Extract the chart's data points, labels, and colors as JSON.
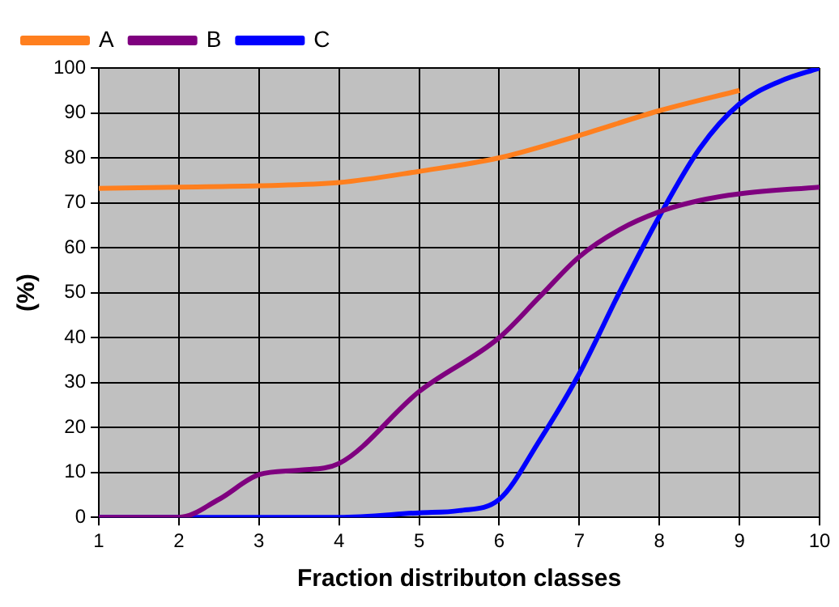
{
  "chart_data": {
    "type": "line",
    "xlabel": "Fraction distributon classes",
    "ylabel": "(%)",
    "xlim": [
      1,
      10
    ],
    "xticks": [
      1,
      2,
      3,
      4,
      5,
      6,
      7,
      8,
      9,
      10
    ],
    "ylim": [
      0,
      100
    ],
    "yticks": [
      0,
      10,
      20,
      30,
      40,
      50,
      60,
      70,
      80,
      90,
      100
    ],
    "grid": true,
    "legend": "top left",
    "marker": "none",
    "line_style": "solid",
    "series": [
      {
        "name": "A",
        "color": "#ff7f1e",
        "x": [
          1,
          2,
          3,
          4,
          5,
          6,
          7,
          8,
          9
        ],
        "values": [
          73.2,
          73.5,
          73.8,
          74.5,
          77,
          80,
          85,
          90.5,
          95
        ]
      },
      {
        "name": "B",
        "color": "#7f007f",
        "x": [
          1,
          2,
          2.5,
          3,
          3.5,
          4,
          5,
          6,
          6.5,
          7,
          7.5,
          8,
          8.5,
          9,
          10
        ],
        "values": [
          0,
          0,
          4,
          9.5,
          10.5,
          12,
          28,
          40,
          49,
          58,
          64,
          68,
          70.5,
          72,
          73.5
        ]
      },
      {
        "name": "C",
        "color": "#0000ff",
        "x": [
          1,
          2,
          3,
          4,
          5,
          5.5,
          6,
          6.5,
          7,
          7.5,
          8,
          8.5,
          9,
          9.5,
          10
        ],
        "values": [
          0,
          0,
          0,
          0,
          1,
          1.5,
          4,
          17,
          32,
          50,
          67,
          82,
          92,
          97,
          100
        ]
      }
    ]
  }
}
